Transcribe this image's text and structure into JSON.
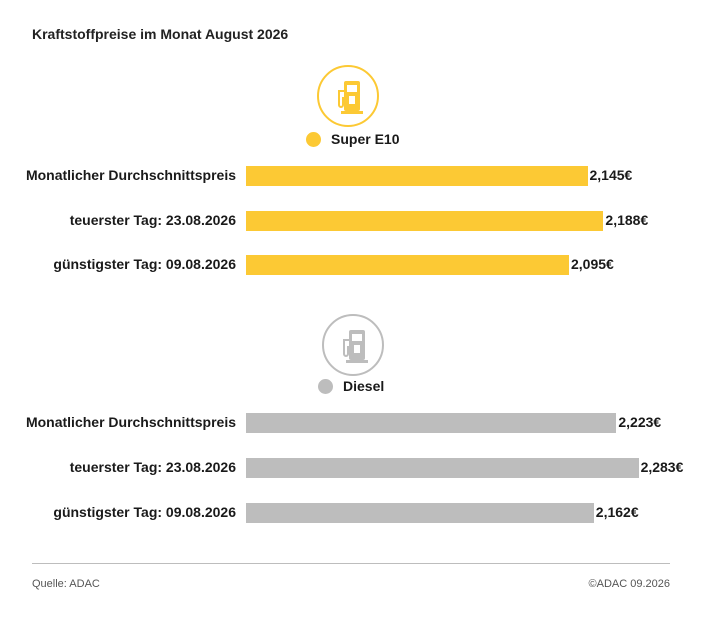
{
  "title": "Kraftstoffpreise im Monat August 2026",
  "colors": {
    "e10": "#fcc934",
    "diesel": "#bdbdbd"
  },
  "icons": {
    "e10": "fuel-pump-icon",
    "diesel": "fuel-pump-icon"
  },
  "chart_data": {
    "type": "bar",
    "orientation": "horizontal",
    "title": "Kraftstoffpreise im Monat August 2026",
    "unit": "€",
    "groups": [
      {
        "name": "Super E10",
        "categories": [
          "Monatlicher Durchschnittspreis",
          "teuerster Tag: 23.08.2026",
          "günstigster Tag: 09.08.2026"
        ],
        "values": [
          2.145,
          2.188,
          2.095
        ],
        "labels": [
          "2,145€",
          "2,188€",
          "2,095€"
        ]
      },
      {
        "name": "Diesel",
        "categories": [
          "Monatlicher Durchschnittspreis",
          "teuerster Tag: 23.08.2026",
          "günstigster Tag: 09.08.2026"
        ],
        "values": [
          2.223,
          2.283,
          2.162
        ],
        "labels": [
          "2,223€",
          "2,283€",
          "2,162€"
        ]
      }
    ]
  },
  "footer": {
    "source": "Quelle: ADAC",
    "copyright": "©ADAC 09.2026"
  }
}
